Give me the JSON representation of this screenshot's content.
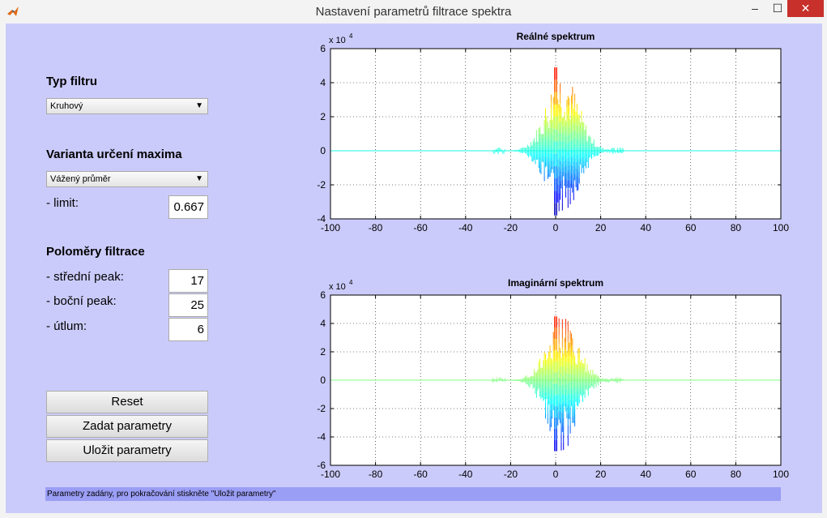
{
  "window": {
    "title": "Nastavení parametrů filtrace spektra",
    "buttons": {
      "minimize": "–",
      "maximize": "☐",
      "close": "✕"
    }
  },
  "filter_type": {
    "heading": "Typ filtru",
    "selected": "Kruhový"
  },
  "max_variant": {
    "heading": "Varianta určení maxima",
    "selected": "Vážený průměr",
    "limit_label": "- limit:",
    "limit_value": "0.667"
  },
  "radii": {
    "heading": "Poloměry filtrace",
    "center_label": "- střední peak:",
    "center_value": "17",
    "side_label": "- boční peak:",
    "side_value": "25",
    "damping_label": "- útlum:",
    "damping_value": "6"
  },
  "buttons": {
    "reset": "Reset",
    "submit": "Zadat parametry",
    "save": "Uložit parametry"
  },
  "status": "Parametry zadány, pro pokračování stiskněte \"Uložit parametry\"",
  "chart_data": [
    {
      "type": "line",
      "title": "Reálné spektrum",
      "y_multiplier": "x 10",
      "y_exponent": "4",
      "xlim": [
        -100,
        100
      ],
      "ylim": [
        -4,
        6
      ],
      "xticks": [
        -100,
        -80,
        -60,
        -40,
        -20,
        0,
        20,
        40,
        60,
        80,
        100
      ],
      "yticks": [
        -4,
        -2,
        0,
        2,
        4,
        6
      ],
      "grid": true,
      "peak_max": 4.9,
      "peak_min": -3.8,
      "support": [
        -28,
        30
      ]
    },
    {
      "type": "line",
      "title": "Imaginární spektrum",
      "y_multiplier": "x 10",
      "y_exponent": "4",
      "xlim": [
        -100,
        100
      ],
      "ylim": [
        -6,
        6
      ],
      "xticks": [
        -100,
        -80,
        -60,
        -40,
        -20,
        0,
        20,
        40,
        60,
        80,
        100
      ],
      "yticks": [
        -6,
        -4,
        -2,
        0,
        2,
        4,
        6
      ],
      "grid": true,
      "peak_max": 4.5,
      "peak_min": -5.0,
      "support": [
        -28,
        30
      ]
    }
  ]
}
